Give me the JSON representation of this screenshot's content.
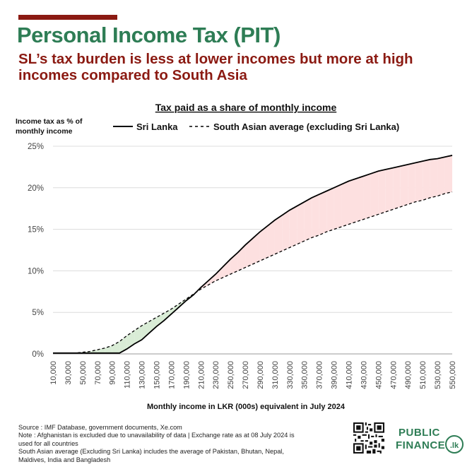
{
  "header": {
    "title": "Personal Income Tax (PIT)",
    "subtitle": "SL’s tax burden is less at lower incomes but more at high incomes compared to South Asia"
  },
  "chart_data": {
    "type": "line",
    "title": "Tax paid as a share of monthly income",
    "ylabel": "Income tax as % of monthly income",
    "xlabel": "Monthly income in LKR (000s) equivalent in July 2024",
    "ylim": [
      0,
      25
    ],
    "yticks": [
      "0%",
      "5%",
      "10%",
      "15%",
      "20%",
      "25%"
    ],
    "grid": true,
    "legend_position": "top",
    "x": [
      10,
      20,
      30,
      40,
      50,
      60,
      70,
      80,
      90,
      100,
      110,
      120,
      130,
      140,
      150,
      160,
      170,
      180,
      190,
      200,
      210,
      220,
      230,
      240,
      250,
      260,
      270,
      280,
      290,
      300,
      310,
      320,
      330,
      340,
      350,
      360,
      370,
      380,
      390,
      400,
      410,
      420,
      430,
      440,
      450,
      460,
      470,
      480,
      490,
      500,
      510,
      520,
      530,
      540,
      550
    ],
    "xtick_labels": [
      "10,000",
      "30,000",
      "50,000",
      "70,000",
      "90,000",
      "110,000",
      "130,000",
      "150,000",
      "170,000",
      "190,000",
      "210,000",
      "230,000",
      "250,000",
      "270,000",
      "290,000",
      "310,000",
      "330,000",
      "350,000",
      "370,000",
      "390,000",
      "410,000",
      "430,000",
      "450,000",
      "470,000",
      "490,000",
      "510,000",
      "530,000",
      "550,000"
    ],
    "series": [
      {
        "name": "Sri Lanka",
        "style": "solid",
        "color": "#000000",
        "values": [
          0.1,
          0.1,
          0.1,
          0.1,
          0.1,
          0.1,
          0.1,
          0.1,
          0.1,
          0.1,
          0.6,
          1.2,
          1.7,
          2.5,
          3.3,
          4.0,
          4.8,
          5.6,
          6.4,
          7.1,
          8.0,
          8.8,
          9.6,
          10.5,
          11.4,
          12.2,
          13.1,
          13.9,
          14.7,
          15.4,
          16.1,
          16.7,
          17.3,
          17.8,
          18.3,
          18.8,
          19.2,
          19.6,
          20.0,
          20.4,
          20.8,
          21.1,
          21.4,
          21.7,
          22.0,
          22.2,
          22.4,
          22.6,
          22.8,
          23.0,
          23.2,
          23.4,
          23.5,
          23.7,
          23.9
        ]
      },
      {
        "name": "South Asian average (excluding Sri Lanka)",
        "style": "dashed",
        "color": "#000000",
        "values": [
          0.1,
          0.1,
          0.1,
          0.1,
          0.2,
          0.3,
          0.5,
          0.7,
          1.0,
          1.5,
          2.2,
          2.8,
          3.4,
          3.9,
          4.4,
          4.9,
          5.4,
          6.0,
          6.6,
          7.2,
          7.8,
          8.3,
          8.8,
          9.2,
          9.6,
          10.0,
          10.4,
          10.8,
          11.2,
          11.6,
          12.0,
          12.4,
          12.8,
          13.2,
          13.6,
          14.0,
          14.3,
          14.7,
          15.0,
          15.3,
          15.6,
          15.9,
          16.2,
          16.5,
          16.8,
          17.1,
          17.4,
          17.7,
          18.0,
          18.3,
          18.5,
          18.8,
          19.0,
          19.3,
          19.5
        ]
      }
    ],
    "fill_colors": {
      "south_asia_higher": "#d9ecd6",
      "sri_lanka_higher": "#fde0e0"
    }
  },
  "footer": {
    "source_lines": [
      "Source : IMF Database, government documents, Xe.com",
      "Note : Afghanistan is excluded due to unavailability of data | Exchange rate as at 08 July 2024 is",
      "used for all countries",
      "South Asian average (Excluding Sri Lanka) includes the average of Pakistan, Bhutan, Nepal,",
      "Maldives, India and Bangladesh"
    ],
    "qr_icon": "qr-code-icon",
    "logo_line1": "PUBLIC",
    "logo_line2": "FINANCE",
    "logo_badge": ".lk",
    "brand_color": "#2e7d55"
  }
}
